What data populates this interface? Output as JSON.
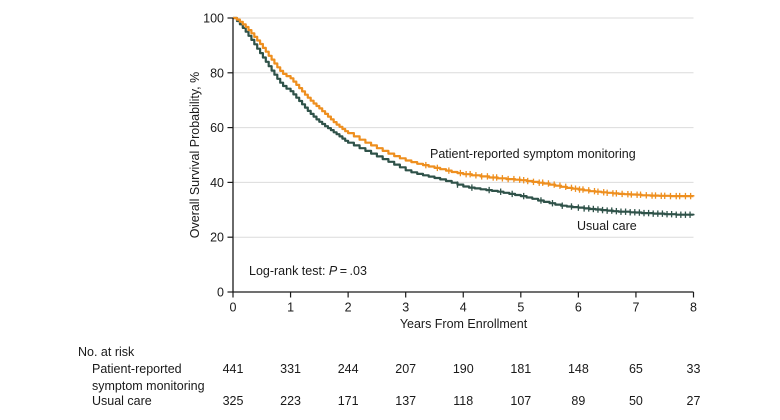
{
  "chart_data": {
    "type": "line",
    "subtype": "kaplan-meier-step-curves",
    "title": "",
    "xlabel": "Years From Enrollment",
    "ylabel": "Overall Survival Probability, %",
    "xlim": [
      0,
      8
    ],
    "ylim": [
      0,
      100
    ],
    "xticks": [
      0,
      1,
      2,
      3,
      4,
      5,
      6,
      7,
      8
    ],
    "yticks": [
      0,
      20,
      40,
      60,
      80,
      100
    ],
    "grid": "horizontal",
    "grid_color": "#dbdbdb",
    "axis_color": "#1a1a1a",
    "annotation": {
      "prefix": "Log-rank test: ",
      "stat_symbol": "P",
      "suffix": " = .03"
    },
    "series": [
      {
        "name": "Patient-reported symptom monitoring",
        "color": "#ee8f1f",
        "points": [
          [
            0,
            100
          ],
          [
            0.07,
            99.4
          ],
          [
            0.12,
            98.6
          ],
          [
            0.17,
            97.7
          ],
          [
            0.22,
            96.7
          ],
          [
            0.27,
            95.6
          ],
          [
            0.32,
            94.4
          ],
          [
            0.37,
            93.1
          ],
          [
            0.42,
            91.8
          ],
          [
            0.47,
            90.5
          ],
          [
            0.52,
            89.1
          ],
          [
            0.57,
            87.7
          ],
          [
            0.62,
            86.2
          ],
          [
            0.67,
            84.8
          ],
          [
            0.72,
            83.4
          ],
          [
            0.77,
            82
          ],
          [
            0.82,
            80.7
          ],
          [
            0.87,
            79.6
          ],
          [
            0.93,
            78.8
          ],
          [
            1,
            78
          ],
          [
            1.05,
            76.8
          ],
          [
            1.1,
            75.6
          ],
          [
            1.15,
            74.4
          ],
          [
            1.2,
            73.2
          ],
          [
            1.25,
            72
          ],
          [
            1.3,
            70.9
          ],
          [
            1.35,
            69.8
          ],
          [
            1.4,
            68.8
          ],
          [
            1.45,
            67.9
          ],
          [
            1.5,
            67
          ],
          [
            1.55,
            66
          ],
          [
            1.6,
            65
          ],
          [
            1.65,
            64
          ],
          [
            1.7,
            63
          ],
          [
            1.75,
            62
          ],
          [
            1.8,
            61.1
          ],
          [
            1.85,
            60.3
          ],
          [
            1.9,
            59.5
          ],
          [
            1.95,
            58.7
          ],
          [
            2,
            58
          ],
          [
            2.1,
            56.8
          ],
          [
            2.2,
            55.6
          ],
          [
            2.3,
            54.5
          ],
          [
            2.4,
            53.5
          ],
          [
            2.5,
            52.5
          ],
          [
            2.6,
            51.5
          ],
          [
            2.7,
            50.5
          ],
          [
            2.8,
            49.6
          ],
          [
            2.9,
            48.8
          ],
          [
            3,
            48
          ],
          [
            3.1,
            47.4
          ],
          [
            3.2,
            46.8
          ],
          [
            3.3,
            46.3
          ],
          [
            3.4,
            45.8
          ],
          [
            3.5,
            45.3
          ],
          [
            3.6,
            44.8
          ],
          [
            3.7,
            44.3
          ],
          [
            3.8,
            43.8
          ],
          [
            3.9,
            43.4
          ],
          [
            4,
            43
          ],
          [
            4.15,
            42.6
          ],
          [
            4.3,
            42.2
          ],
          [
            4.45,
            41.8
          ],
          [
            4.6,
            41.5
          ],
          [
            4.75,
            41.2
          ],
          [
            4.9,
            41
          ],
          [
            5,
            40.8
          ],
          [
            5.1,
            40.5
          ],
          [
            5.2,
            40.2
          ],
          [
            5.3,
            39.9
          ],
          [
            5.4,
            39.6
          ],
          [
            5.5,
            39.2
          ],
          [
            5.6,
            38.8
          ],
          [
            5.7,
            38.4
          ],
          [
            5.8,
            38
          ],
          [
            5.9,
            37.7
          ],
          [
            6,
            37.4
          ],
          [
            6.1,
            37.1
          ],
          [
            6.2,
            36.8
          ],
          [
            6.3,
            36.6
          ],
          [
            6.4,
            36.4
          ],
          [
            6.5,
            36.2
          ],
          [
            6.6,
            36
          ],
          [
            6.7,
            35.8
          ],
          [
            6.8,
            35.7
          ],
          [
            6.9,
            35.6
          ],
          [
            7,
            35.5
          ],
          [
            7.1,
            35.3
          ],
          [
            7.25,
            35.2
          ],
          [
            7.4,
            35.1
          ],
          [
            7.6,
            35
          ],
          [
            8,
            34.9
          ]
        ],
        "censor_times": [
          3.35,
          3.55,
          3.75,
          3.95,
          4.05,
          4.12,
          4.22,
          4.32,
          4.42,
          4.52,
          4.58,
          4.68,
          4.78,
          4.88,
          4.98,
          5.05,
          5.12,
          5.22,
          5.32,
          5.38,
          5.48,
          5.58,
          5.68,
          5.78,
          5.88,
          5.95,
          6.02,
          6.08,
          6.18,
          6.28,
          6.34,
          6.44,
          6.5,
          6.6,
          6.66,
          6.76,
          6.86,
          6.92,
          7.02,
          7.08,
          7.18,
          7.28,
          7.34,
          7.44,
          7.5,
          7.6,
          7.7,
          7.76,
          7.86,
          7.95
        ]
      },
      {
        "name": "Usual care",
        "color": "#2f5249",
        "points": [
          [
            0,
            100
          ],
          [
            0.07,
            98.9
          ],
          [
            0.12,
            97.7
          ],
          [
            0.17,
            96.4
          ],
          [
            0.22,
            95
          ],
          [
            0.27,
            93.5
          ],
          [
            0.32,
            92
          ],
          [
            0.37,
            90.4
          ],
          [
            0.42,
            88.8
          ],
          [
            0.47,
            87.2
          ],
          [
            0.52,
            85.6
          ],
          [
            0.57,
            84
          ],
          [
            0.62,
            82.4
          ],
          [
            0.67,
            80.8
          ],
          [
            0.72,
            79.3
          ],
          [
            0.77,
            77.8
          ],
          [
            0.82,
            76.4
          ],
          [
            0.87,
            75.2
          ],
          [
            0.93,
            74.2
          ],
          [
            1,
            73.3
          ],
          [
            1.05,
            72.1
          ],
          [
            1.1,
            70.9
          ],
          [
            1.15,
            69.7
          ],
          [
            1.2,
            68.5
          ],
          [
            1.25,
            67.3
          ],
          [
            1.3,
            66.1
          ],
          [
            1.35,
            65
          ],
          [
            1.4,
            64
          ],
          [
            1.45,
            63
          ],
          [
            1.5,
            62.1
          ],
          [
            1.55,
            61.3
          ],
          [
            1.6,
            60.5
          ],
          [
            1.65,
            59.8
          ],
          [
            1.7,
            59.1
          ],
          [
            1.75,
            58.3
          ],
          [
            1.8,
            57.6
          ],
          [
            1.85,
            56.8
          ],
          [
            1.9,
            56
          ],
          [
            1.95,
            55.2
          ],
          [
            2,
            54.5
          ],
          [
            2.1,
            53.5
          ],
          [
            2.2,
            52.5
          ],
          [
            2.3,
            51.5
          ],
          [
            2.4,
            50.5
          ],
          [
            2.5,
            49.5
          ],
          [
            2.6,
            48.5
          ],
          [
            2.7,
            47.5
          ],
          [
            2.8,
            46.5
          ],
          [
            2.9,
            45.5
          ],
          [
            3,
            44.4
          ],
          [
            3.1,
            43.7
          ],
          [
            3.2,
            43.1
          ],
          [
            3.3,
            42.6
          ],
          [
            3.4,
            42.1
          ],
          [
            3.5,
            41.6
          ],
          [
            3.6,
            41.1
          ],
          [
            3.7,
            40.5
          ],
          [
            3.8,
            39.9
          ],
          [
            3.9,
            39.2
          ],
          [
            4,
            38.5
          ],
          [
            4.1,
            38.1
          ],
          [
            4.2,
            37.8
          ],
          [
            4.3,
            37.5
          ],
          [
            4.4,
            37.2
          ],
          [
            4.5,
            36.9
          ],
          [
            4.6,
            36.6
          ],
          [
            4.7,
            36.2
          ],
          [
            4.8,
            35.8
          ],
          [
            4.9,
            35.4
          ],
          [
            5,
            35
          ],
          [
            5.1,
            34.5
          ],
          [
            5.2,
            34
          ],
          [
            5.3,
            33.4
          ],
          [
            5.4,
            32.9
          ],
          [
            5.5,
            32.4
          ],
          [
            5.6,
            31.9
          ],
          [
            5.7,
            31.5
          ],
          [
            5.8,
            31.2
          ],
          [
            5.9,
            31
          ],
          [
            6,
            30.8
          ],
          [
            6.1,
            30.5
          ],
          [
            6.2,
            30.3
          ],
          [
            6.3,
            30.1
          ],
          [
            6.4,
            29.9
          ],
          [
            6.5,
            29.7
          ],
          [
            6.6,
            29.5
          ],
          [
            6.7,
            29.3
          ],
          [
            6.9,
            29.1
          ],
          [
            7,
            29
          ],
          [
            7.1,
            28.8
          ],
          [
            7.3,
            28.6
          ],
          [
            7.5,
            28.4
          ],
          [
            7.7,
            28.2
          ],
          [
            8,
            28
          ]
        ],
        "censor_times": [
          3.9,
          4.15,
          4.45,
          4.65,
          4.85,
          5.05,
          5.35,
          5.55,
          5.72,
          5.88,
          6,
          6.1,
          6.18,
          6.26,
          6.34,
          6.42,
          6.5,
          6.58,
          6.66,
          6.74,
          6.82,
          6.9,
          6.98,
          7.06,
          7.14,
          7.22,
          7.3,
          7.38,
          7.46,
          7.54,
          7.62,
          7.7,
          7.78,
          7.86,
          7.94
        ]
      }
    ]
  },
  "risk_table": {
    "title": "No. at risk",
    "rows": [
      {
        "label_lines": [
          "Patient-reported",
          "symptom monitoring"
        ],
        "counts": [
          441,
          331,
          244,
          207,
          190,
          181,
          148,
          65,
          33
        ]
      },
      {
        "label_lines": [
          "Usual care"
        ],
        "counts": [
          325,
          223,
          171,
          137,
          118,
          107,
          89,
          50,
          27
        ]
      }
    ]
  }
}
